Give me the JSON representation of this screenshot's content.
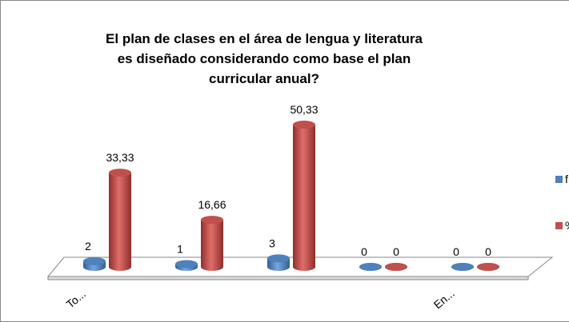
{
  "chart_data": {
    "type": "bar3d",
    "title": "El plan de clases en el área de lengua y literatura es diseñado considerando como base el plan curricular anual?",
    "categories": [
      "To...",
      null,
      null,
      null,
      "En..."
    ],
    "series": [
      {
        "name": "f",
        "color": "#4f81bd",
        "values": [
          2,
          1,
          3,
          0,
          0
        ]
      },
      {
        "name": "%",
        "color": "#c0504d",
        "values": [
          33.33,
          16.66,
          50.33,
          0,
          0
        ],
        "value_labels": [
          "33,33",
          "16,66",
          "50,33",
          "0",
          "0"
        ]
      }
    ],
    "legend": "right"
  }
}
